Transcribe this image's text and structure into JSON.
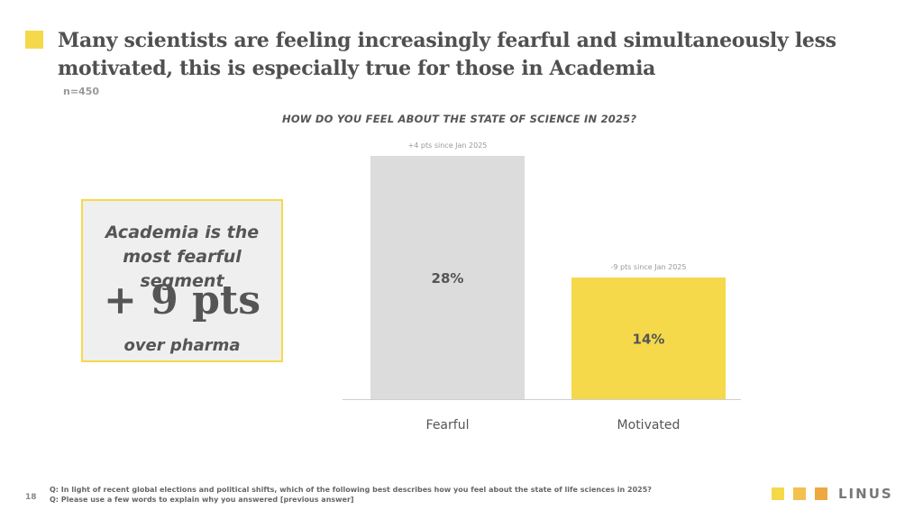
{
  "slide": {
    "headline": "Many scientists are feeling increasingly fearful and simultaneously less motivated, this is especially true for those in Academia",
    "sample_size": "n=450",
    "page_number": "18",
    "accent_color": "#F5D94A"
  },
  "callout": {
    "line1": "Academia is the most fearful segment",
    "big": "+ 9 pts",
    "line3": "over pharma"
  },
  "chart_data": {
    "type": "bar",
    "title": "HOW DO YOU FEEL ABOUT THE STATE OF SCIENCE IN 2025?",
    "categories": [
      "Fearful",
      "Motivated"
    ],
    "values": [
      28,
      14
    ],
    "value_labels": [
      "28%",
      "14%"
    ],
    "annotations": [
      "+4 pts since Jan 2025",
      "-9 pts since  Jan 2025"
    ],
    "colors": [
      "#DCDCDC",
      "#F5D94A"
    ],
    "ylim": [
      0,
      28
    ],
    "grid": false
  },
  "footer": {
    "q1": "Q: In light of recent global elections and political shifts, which of the following best describes how you feel about the state of life sciences in 2025?",
    "q2": "Q: Please use a few words to explain why you answered [previous answer]"
  },
  "logo": {
    "text": "LINUS",
    "square_colors": [
      "#F5D94A",
      "#F2C14E",
      "#EDA83F"
    ]
  }
}
